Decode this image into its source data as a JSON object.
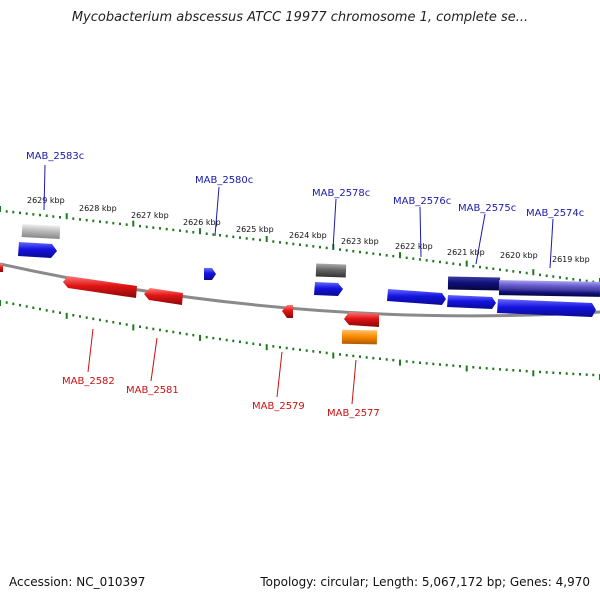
{
  "title": "Mycobacterium abscessus ATCC 19977 chromosome 1, complete se...",
  "footer": {
    "accession": "Accession: NC_010397",
    "summary": "Topology: circular; Length: 5,067,172 bp; Genes: 4,970"
  },
  "colors": {
    "axis": "#8a8a8a",
    "ruler": "#1f7a1f",
    "forward_label": "#1a1aaa",
    "reverse_label": "#cc1111",
    "forward_gene": "#1414e0",
    "reverse_gene": "#e01414",
    "dark_gene": "#10107a",
    "purple_gene": "#6a60d0",
    "grey_gene": "#666666",
    "lightgrey_gene": "#bbbbbb",
    "orange_gene": "#ff8c00"
  },
  "ruler_labels": [
    "2629 kbp",
    "2628 kbp",
    "2627 kbp",
    "2626 kbp",
    "2625 kbp",
    "2624 kbp",
    "2623 kbp",
    "2622 kbp",
    "2621 kbp",
    "2620 kbp",
    "2619 kbp"
  ],
  "forward_gene_labels": [
    "MAB_2583c",
    "MAB_2580c",
    "MAB_2578c",
    "MAB_2576c",
    "MAB_2575c",
    "MAB_2574c"
  ],
  "reverse_gene_labels": [
    "MAB_2582",
    "MAB_2581",
    "MAB_2579",
    "MAB_2577"
  ]
}
